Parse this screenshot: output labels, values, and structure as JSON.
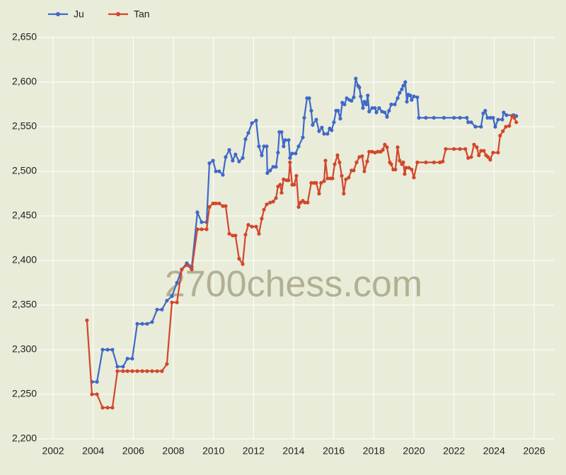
{
  "chart_data": {
    "type": "line",
    "watermark": "2700chess.com",
    "xlim": [
      2001,
      2027
    ],
    "xticks": [
      2002,
      2004,
      2006,
      2008,
      2010,
      2012,
      2014,
      2016,
      2018,
      2020,
      2022,
      2024,
      2026
    ],
    "ylim": [
      2200,
      2650
    ],
    "yticks": [
      {
        "value": 2200,
        "label": "2,200"
      },
      {
        "value": 2250,
        "label": "2,250"
      },
      {
        "value": 2300,
        "label": "2,300"
      },
      {
        "value": 2350,
        "label": "2,350"
      },
      {
        "value": 2400,
        "label": "2,400"
      },
      {
        "value": 2450,
        "label": "2,450"
      },
      {
        "value": 2500,
        "label": "2,500"
      },
      {
        "value": 2550,
        "label": "2,550"
      },
      {
        "value": 2600,
        "label": "2,600"
      },
      {
        "value": 2650,
        "label": "2,650"
      }
    ],
    "grid": true,
    "legend": "top-left",
    "series": [
      {
        "name": "Ju",
        "color": "#3f69c8",
        "x": [
          2003.94,
          2004.19,
          2004.47,
          2004.72,
          2004.96,
          2005.21,
          2005.49,
          2005.71,
          2005.95,
          2006.2,
          2006.45,
          2006.69,
          2006.94,
          2007.19,
          2007.43,
          2007.68,
          2007.93,
          2008.18,
          2008.42,
          2008.67,
          2008.92,
          2009.2,
          2009.41,
          2009.66,
          2009.8,
          2009.98,
          2010.12,
          2010.29,
          2010.47,
          2010.61,
          2010.79,
          2010.96,
          2011.1,
          2011.28,
          2011.46,
          2011.6,
          2011.74,
          2011.92,
          2012.13,
          2012.27,
          2012.41,
          2012.52,
          2012.66,
          2012.69,
          2012.83,
          2012.98,
          2013.12,
          2013.22,
          2013.29,
          2013.4,
          2013.5,
          2013.58,
          2013.75,
          2013.82,
          2013.93,
          2014.1,
          2014.25,
          2014.46,
          2014.53,
          2014.67,
          2014.78,
          2014.88,
          2014.95,
          2015.13,
          2015.27,
          2015.41,
          2015.52,
          2015.69,
          2015.8,
          2015.9,
          2016.01,
          2016.12,
          2016.22,
          2016.33,
          2016.43,
          2016.54,
          2016.65,
          2016.79,
          2016.89,
          2017.0,
          2017.1,
          2017.21,
          2017.28,
          2017.35,
          2017.46,
          2017.53,
          2017.63,
          2017.7,
          2017.77,
          2017.92,
          2018.06,
          2018.13,
          2018.27,
          2018.41,
          2018.55,
          2018.66,
          2018.76,
          2018.87,
          2019.05,
          2019.19,
          2019.29,
          2019.4,
          2019.47,
          2019.57,
          2019.65,
          2019.72,
          2019.82,
          2019.89,
          2020.0,
          2020.17,
          2020.25,
          2020.6,
          2021.0,
          2021.5,
          2022.0,
          2022.3,
          2022.64,
          2022.71,
          2022.86,
          2023.07,
          2023.35,
          2023.46,
          2023.56,
          2023.67,
          2023.81,
          2023.95,
          2024.06,
          2024.2,
          2024.41,
          2024.48,
          2024.62,
          2024.97,
          2025.11
        ],
        "values": [
          2264,
          2264,
          2300,
          2300,
          2300,
          2281,
          2281,
          2290,
          2290,
          2329,
          2329,
          2329,
          2331,
          2345,
          2345,
          2355,
          2360,
          2375,
          2390,
          2397,
          2393,
          2454,
          2443,
          2443,
          2509,
          2512,
          2500,
          2500,
          2496,
          2516,
          2524,
          2512,
          2519,
          2511,
          2515,
          2536,
          2543,
          2554,
          2557,
          2528,
          2518,
          2528,
          2528,
          2498,
          2501,
          2505,
          2505,
          2521,
          2544,
          2544,
          2528,
          2535,
          2535,
          2515,
          2520,
          2520,
          2528,
          2538,
          2560,
          2582,
          2582,
          2568,
          2552,
          2558,
          2545,
          2549,
          2542,
          2542,
          2548,
          2546,
          2555,
          2568,
          2568,
          2559,
          2577,
          2575,
          2582,
          2580,
          2579,
          2583,
          2604,
          2596,
          2594,
          2584,
          2571,
          2578,
          2575,
          2585,
          2567,
          2571,
          2571,
          2566,
          2571,
          2567,
          2566,
          2561,
          2568,
          2575,
          2575,
          2582,
          2588,
          2592,
          2596,
          2600,
          2578,
          2586,
          2585,
          2580,
          2584,
          2583,
          2560,
          2560,
          2560,
          2560,
          2560,
          2560,
          2560,
          2555,
          2555,
          2550,
          2550,
          2565,
          2568,
          2560,
          2560,
          2560,
          2550,
          2558,
          2558,
          2566,
          2563,
          2563,
          2562
        ]
      },
      {
        "name": "Tan",
        "color": "#d2462b",
        "x": [
          2003.69,
          2003.94,
          2004.19,
          2004.47,
          2004.72,
          2004.96,
          2005.21,
          2005.49,
          2005.71,
          2005.95,
          2006.2,
          2006.45,
          2006.69,
          2006.94,
          2007.19,
          2007.43,
          2007.68,
          2007.93,
          2008.18,
          2008.42,
          2008.67,
          2008.92,
          2009.2,
          2009.41,
          2009.66,
          2009.8,
          2009.98,
          2010.12,
          2010.29,
          2010.47,
          2010.61,
          2010.79,
          2010.96,
          2011.1,
          2011.28,
          2011.46,
          2011.6,
          2011.74,
          2011.92,
          2012.13,
          2012.27,
          2012.41,
          2012.52,
          2012.66,
          2012.83,
          2012.98,
          2013.12,
          2013.22,
          2013.33,
          2013.4,
          2013.5,
          2013.65,
          2013.75,
          2013.82,
          2013.93,
          2014.03,
          2014.14,
          2014.25,
          2014.35,
          2014.46,
          2014.56,
          2014.7,
          2014.88,
          2015.02,
          2015.13,
          2015.27,
          2015.37,
          2015.52,
          2015.59,
          2015.69,
          2015.83,
          2015.94,
          2016.05,
          2016.19,
          2016.29,
          2016.4,
          2016.5,
          2016.61,
          2016.75,
          2016.89,
          2017.0,
          2017.14,
          2017.28,
          2017.42,
          2017.53,
          2017.67,
          2017.77,
          2017.92,
          2018.06,
          2018.2,
          2018.34,
          2018.45,
          2018.55,
          2018.66,
          2018.8,
          2018.87,
          2018.97,
          2019.08,
          2019.19,
          2019.29,
          2019.4,
          2019.47,
          2019.54,
          2019.61,
          2019.75,
          2019.89,
          2020.0,
          2020.17,
          2020.6,
          2021.0,
          2021.3,
          2021.44,
          2021.59,
          2022.0,
          2022.3,
          2022.57,
          2022.71,
          2022.86,
          2023.0,
          2023.14,
          2023.24,
          2023.35,
          2023.49,
          2023.6,
          2023.7,
          2023.81,
          2023.95,
          2024.2,
          2024.3,
          2024.44,
          2024.59,
          2024.76,
          2024.9,
          2025.01,
          2025.11
        ],
        "values": [
          2333,
          2250,
          2250,
          2235,
          2235,
          2235,
          2276,
          2276,
          2276,
          2276,
          2276,
          2276,
          2276,
          2276,
          2276,
          2276,
          2284,
          2353,
          2353,
          2390,
          2395,
          2390,
          2435,
          2435,
          2435,
          2460,
          2464,
          2464,
          2464,
          2461,
          2461,
          2430,
          2428,
          2428,
          2402,
          2396,
          2429,
          2440,
          2438,
          2438,
          2430,
          2447,
          2457,
          2463,
          2465,
          2466,
          2470,
          2483,
          2485,
          2476,
          2491,
          2490,
          2490,
          2510,
          2485,
          2485,
          2495,
          2460,
          2465,
          2467,
          2465,
          2465,
          2487,
          2487,
          2487,
          2475,
          2487,
          2489,
          2512,
          2492,
          2492,
          2492,
          2508,
          2518,
          2510,
          2495,
          2475,
          2491,
          2493,
          2501,
          2501,
          2510,
          2516,
          2517,
          2500,
          2511,
          2522,
          2522,
          2521,
          2522,
          2522,
          2524,
          2530,
          2527,
          2510,
          2508,
          2502,
          2502,
          2527,
          2512,
          2508,
          2510,
          2497,
          2504,
          2504,
          2502,
          2493,
          2510,
          2510,
          2510,
          2510,
          2511,
          2525,
          2525,
          2525,
          2525,
          2515,
          2516,
          2530,
          2527,
          2518,
          2523,
          2523,
          2518,
          2516,
          2513,
          2521,
          2521,
          2540,
          2545,
          2550,
          2551,
          2562,
          2560,
          2555
        ]
      }
    ]
  }
}
